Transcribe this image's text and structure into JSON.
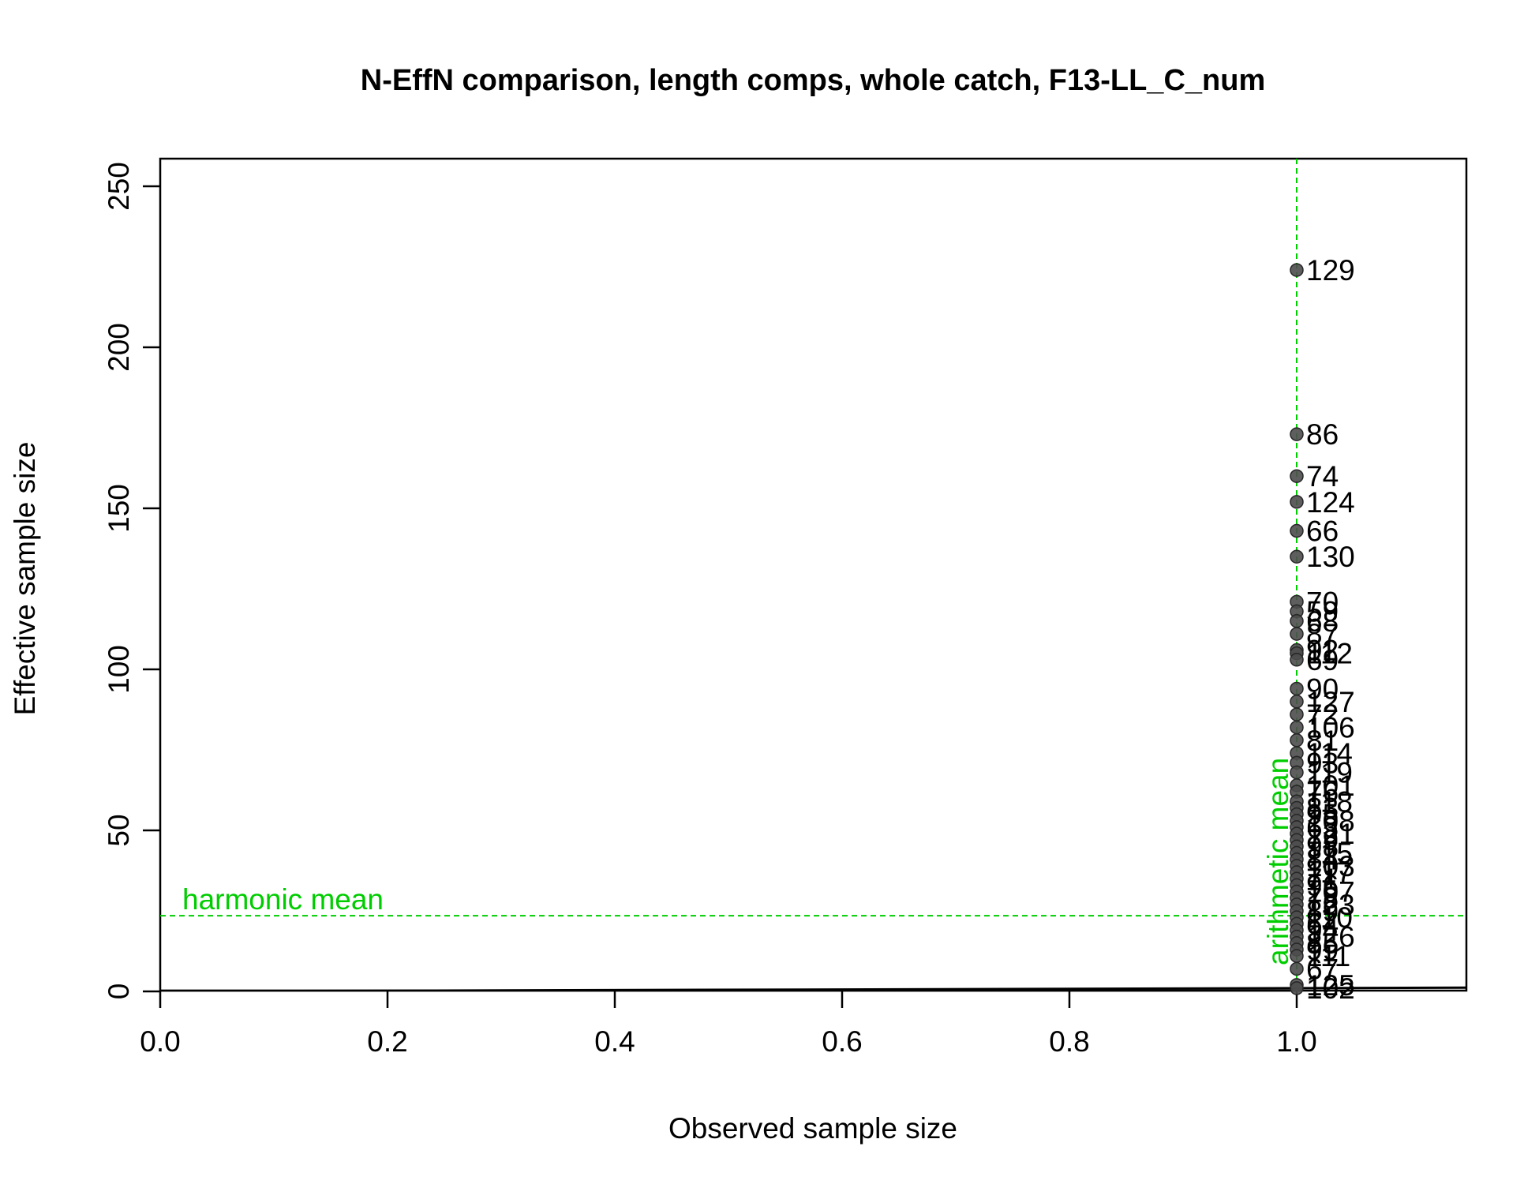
{
  "chart_data": {
    "type": "scatter",
    "title": "N-EffN comparison, length comps, whole catch, F13-LL_C_num",
    "xlabel": "Observed sample size",
    "ylabel": "Effective sample size",
    "xlim": [
      0,
      1.15
    ],
    "ylim": [
      0,
      250
    ],
    "x_ticks": [
      "0.0",
      "0.2",
      "0.4",
      "0.6",
      "0.8",
      "1.0"
    ],
    "y_ticks": [
      "0",
      "50",
      "100",
      "150",
      "200",
      "250"
    ],
    "grid": false,
    "legend": "none",
    "x": 1.0,
    "harmonic_mean": {
      "label": "harmonic mean",
      "value": 23.5,
      "color": "#00cd00"
    },
    "arithmetic_mean": {
      "label": "arithmetic mean",
      "value": 1.0,
      "color": "#00cd00"
    },
    "one_to_one_line": true,
    "points": [
      {
        "label": "129",
        "y": 224
      },
      {
        "label": "86",
        "y": 173
      },
      {
        "label": "74",
        "y": 160
      },
      {
        "label": "124",
        "y": 152
      },
      {
        "label": "66",
        "y": 143
      },
      {
        "label": "130",
        "y": 135
      },
      {
        "label": "70",
        "y": 121
      },
      {
        "label": "59",
        "y": 118
      },
      {
        "label": "68",
        "y": 115
      },
      {
        "label": "87",
        "y": 111
      },
      {
        "label": "92",
        "y": 106
      },
      {
        "label": "112",
        "y": 105
      },
      {
        "label": "69",
        "y": 103
      },
      {
        "label": "90",
        "y": 94
      },
      {
        "label": "127",
        "y": 90
      },
      {
        "label": "72",
        "y": 86
      },
      {
        "label": "106",
        "y": 82
      },
      {
        "label": "81",
        "y": 78
      },
      {
        "label": "114",
        "y": 74
      },
      {
        "label": "93",
        "y": 71
      },
      {
        "label": "119",
        "y": 68
      },
      {
        "label": "101",
        "y": 64
      },
      {
        "label": "76",
        "y": 62
      },
      {
        "label": "118",
        "y": 59
      },
      {
        "label": "83",
        "y": 57
      },
      {
        "label": "95",
        "y": 55
      },
      {
        "label": "108",
        "y": 53
      },
      {
        "label": "63",
        "y": 51
      },
      {
        "label": "121",
        "y": 49
      },
      {
        "label": "79",
        "y": 47
      },
      {
        "label": "98",
        "y": 45
      },
      {
        "label": "115",
        "y": 43
      },
      {
        "label": "84",
        "y": 41
      },
      {
        "label": "103",
        "y": 39
      },
      {
        "label": "117",
        "y": 37
      },
      {
        "label": "71",
        "y": 35
      },
      {
        "label": "96",
        "y": 33
      },
      {
        "label": "107",
        "y": 31
      },
      {
        "label": "78",
        "y": 29
      },
      {
        "label": "123",
        "y": 27
      },
      {
        "label": "89",
        "y": 25
      },
      {
        "label": "110",
        "y": 23
      },
      {
        "label": "64",
        "y": 21
      },
      {
        "label": "94",
        "y": 19
      },
      {
        "label": "126",
        "y": 17
      },
      {
        "label": "85",
        "y": 15
      },
      {
        "label": "99",
        "y": 13
      },
      {
        "label": "111",
        "y": 11
      },
      {
        "label": "67",
        "y": 7
      },
      {
        "label": "125",
        "y": 2
      },
      {
        "label": "102",
        "y": 1
      }
    ]
  }
}
